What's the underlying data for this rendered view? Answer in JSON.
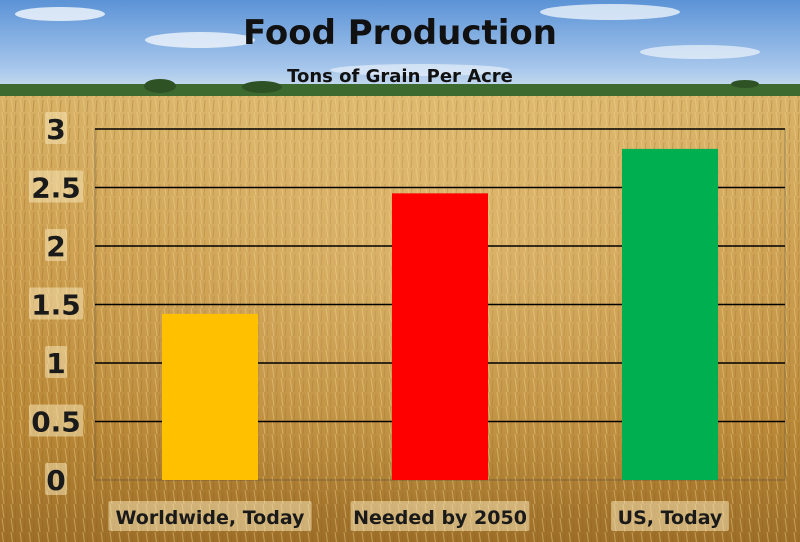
{
  "chart_data": {
    "type": "bar",
    "title": "Food Production",
    "subtitle": "Tons of Grain Per Acre",
    "categories": [
      "Worldwide, Today",
      "Needed by 2050",
      "US, Today"
    ],
    "values": [
      1.42,
      2.45,
      2.83
    ],
    "bar_colors": [
      "#FFC000",
      "#FF0000",
      "#00B050"
    ],
    "ylim": [
      0,
      3
    ],
    "yticks": [
      "0",
      "0.5",
      "1",
      "1.5",
      "2",
      "2.5",
      "3"
    ],
    "grid": true,
    "legend": "none",
    "background": "wheat-field photo"
  }
}
